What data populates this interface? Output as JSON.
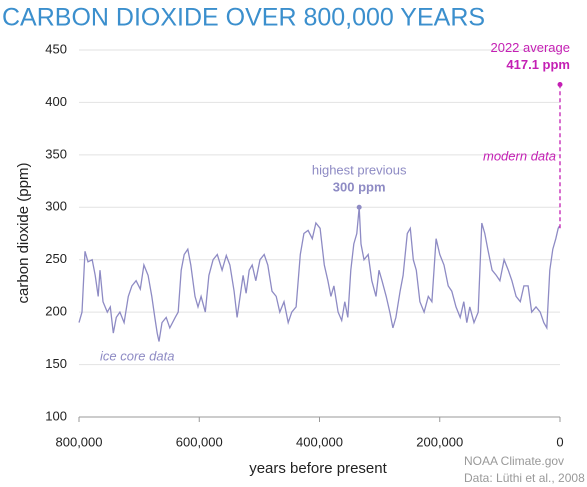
{
  "chart_data": {
    "type": "line",
    "title": "CARBON DIOXIDE OVER 800,000 YEARS",
    "xlabel": "years before present",
    "ylabel": "carbon dioxide (ppm)",
    "xlim": [
      800000,
      0
    ],
    "ylim": [
      100,
      450
    ],
    "xticks": [
      {
        "value": 800000,
        "label": "800,000"
      },
      {
        "value": 600000,
        "label": "600,000"
      },
      {
        "value": 400000,
        "label": "400,000"
      },
      {
        "value": 200000,
        "label": "200,000"
      },
      0
    ],
    "yticks": [
      100,
      150,
      200,
      250,
      300,
      350,
      400,
      450
    ],
    "grid": true,
    "series": [
      {
        "name": "ice core data",
        "color": "#8e8bc4",
        "x": [
          800000,
          795000,
          790000,
          785000,
          778000,
          773000,
          768000,
          765000,
          760000,
          753000,
          748000,
          743000,
          738000,
          732000,
          725000,
          718000,
          712000,
          705000,
          698000,
          692000,
          685000,
          679000,
          674000,
          670000,
          667000,
          662000,
          655000,
          649000,
          640000,
          635000,
          630000,
          625000,
          619000,
          614000,
          607000,
          602000,
          597000,
          590000,
          584000,
          577000,
          570000,
          562000,
          555000,
          549000,
          542000,
          537000,
          532000,
          527000,
          522000,
          517000,
          512000,
          506000,
          499000,
          492000,
          486000,
          479000,
          472000,
          466000,
          459000,
          452000,
          446000,
          439000,
          432000,
          426000,
          419000,
          412000,
          406000,
          399000,
          392000,
          386000,
          381000,
          376000,
          369000,
          363000,
          358000,
          353000,
          348000,
          343000,
          338000,
          334000,
          331000,
          326000,
          319000,
          313000,
          306000,
          301000,
          296000,
          289000,
          283000,
          278000,
          273000,
          266000,
          261000,
          254000,
          249000,
          244000,
          239000,
          233000,
          226000,
          219000,
          213000,
          206000,
          200000,
          193000,
          186000,
          180000,
          173000,
          166000,
          160000,
          155000,
          150000,
          143000,
          136000,
          130000,
          125000,
          120000,
          113000,
          106000,
          100000,
          93000,
          86000,
          80000,
          73000,
          66000,
          60000,
          53000,
          47000,
          40000,
          33000,
          27000,
          22000,
          17000,
          12000,
          7000,
          3000,
          1000
        ],
        "values": [
          190,
          200,
          258,
          248,
          250,
          235,
          215,
          240,
          210,
          200,
          205,
          180,
          195,
          200,
          190,
          215,
          225,
          230,
          222,
          245,
          235,
          215,
          195,
          180,
          172,
          190,
          195,
          185,
          195,
          200,
          240,
          255,
          260,
          245,
          215,
          205,
          215,
          200,
          235,
          250,
          255,
          240,
          254,
          245,
          220,
          195,
          215,
          235,
          218,
          240,
          245,
          230,
          250,
          255,
          245,
          220,
          215,
          200,
          210,
          190,
          200,
          205,
          255,
          275,
          278,
          270,
          285,
          280,
          245,
          230,
          215,
          225,
          200,
          192,
          210,
          195,
          240,
          265,
          275,
          300,
          265,
          250,
          255,
          230,
          215,
          240,
          230,
          215,
          200,
          185,
          195,
          220,
          235,
          275,
          280,
          250,
          240,
          210,
          200,
          215,
          210,
          270,
          255,
          245,
          225,
          220,
          205,
          195,
          210,
          190,
          205,
          190,
          200,
          285,
          275,
          260,
          240,
          235,
          230,
          250,
          240,
          230,
          215,
          210,
          225,
          225,
          200,
          205,
          200,
          190,
          185,
          240,
          260,
          270,
          280,
          282
        ]
      },
      {
        "name": "modern data",
        "color": "#c41fb4",
        "dashed": true,
        "x": [
          0,
          0
        ],
        "values": [
          280,
          417.1
        ]
      }
    ],
    "highlights": [
      {
        "text": "highest previous",
        "x": 334000,
        "value": 300,
        "label": "300 ppm",
        "color": "#8e8bc4"
      },
      {
        "text": "2022 average",
        "x": 0,
        "value": 417.1,
        "label": "417.1 ppm",
        "color": "#c41fb4"
      }
    ],
    "sources": [
      "NOAA Climate.gov",
      "Data: Lüthi et al., 2008"
    ]
  }
}
